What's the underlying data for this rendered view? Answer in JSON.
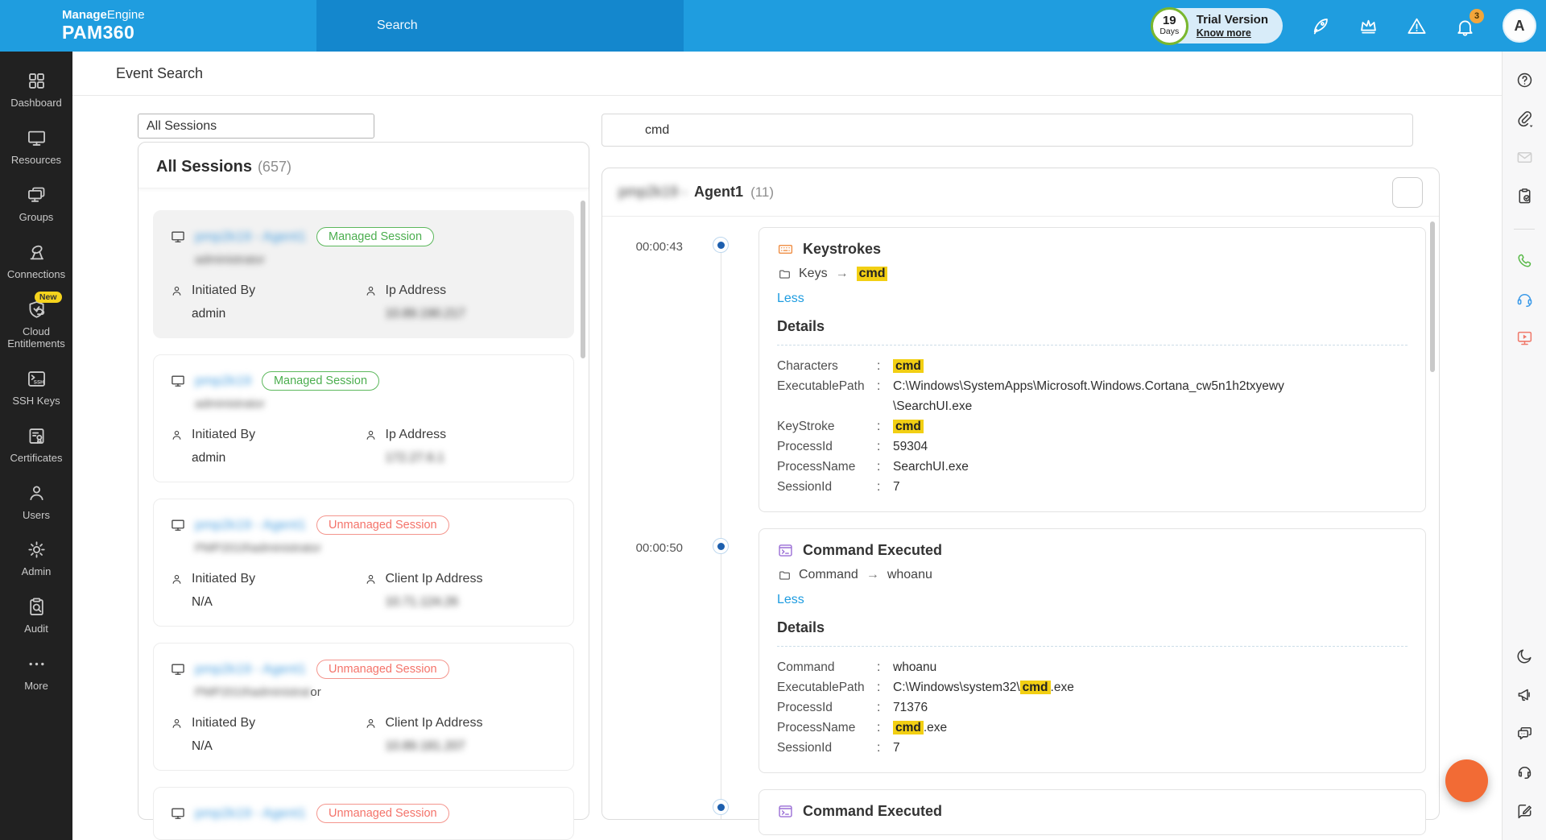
{
  "header": {
    "brand": {
      "bold": "Manage",
      "rest": "Engine",
      "product": "PAM360"
    },
    "search_placeholder": "Search",
    "trial": {
      "days": "19",
      "days_label": "Days",
      "label": "Trial Version",
      "link": "Know more"
    },
    "icons": [
      {
        "name": "rocket-icon"
      },
      {
        "name": "crown-icon"
      },
      {
        "name": "warning-icon"
      },
      {
        "name": "bell-icon",
        "badge": "3"
      }
    ],
    "avatar": "A"
  },
  "sidebar": {
    "items": [
      {
        "label": "Dashboard",
        "icon": "dashboard-icon"
      },
      {
        "label": "Resources",
        "icon": "resources-icon"
      },
      {
        "label": "Groups",
        "icon": "groups-icon"
      },
      {
        "label": "Connections",
        "icon": "connections-icon"
      },
      {
        "label": "Cloud Entitlements",
        "icon": "cloud-entitlements-icon",
        "badge": "New"
      },
      {
        "label": "SSH Keys",
        "icon": "ssh-keys-icon"
      },
      {
        "label": "Certificates",
        "icon": "certificates-icon"
      },
      {
        "label": "Users",
        "icon": "users-icon"
      },
      {
        "label": "Admin",
        "icon": "admin-icon"
      },
      {
        "label": "Audit",
        "icon": "audit-icon"
      },
      {
        "label": "More",
        "icon": "more-icon"
      }
    ]
  },
  "page": {
    "title": "Event Search"
  },
  "sessions_panel": {
    "filter_value": "All Sessions",
    "list_title": "All Sessions",
    "list_count": "(657)",
    "cards": [
      {
        "title": "pmp2k19 - Agent1",
        "title_blurred": true,
        "badge": "Managed Session",
        "badge_type": "managed",
        "subtitle": "administrator",
        "subtitle_blurred": true,
        "selected": true,
        "fields": [
          {
            "label": "Initiated By",
            "value": "admin",
            "blurred": false
          },
          {
            "label": "Ip Address",
            "value": "10.89.190.217",
            "blurred": true
          }
        ]
      },
      {
        "title": "pmp2k19",
        "title_blurred": true,
        "badge": "Managed Session",
        "badge_type": "managed",
        "subtitle": "administrator",
        "subtitle_blurred": true,
        "selected": false,
        "fields": [
          {
            "label": "Initiated By",
            "value": "admin",
            "blurred": false
          },
          {
            "label": "Ip Address",
            "value": "172.27.6.1",
            "blurred": true
          }
        ]
      },
      {
        "title": "pmp2k19 - Agent1",
        "title_blurred": true,
        "badge": "Unmanaged Session",
        "badge_type": "unmanaged",
        "subtitle": "PMP2019\\administrator",
        "subtitle_blurred": true,
        "selected": false,
        "fields": [
          {
            "label": "Initiated By",
            "value": "N/A",
            "blurred": false
          },
          {
            "label": "Client Ip Address",
            "value": "10.71.124.26",
            "blurred": true
          }
        ]
      },
      {
        "title": "pmp2k19 - Agent1",
        "title_blurred": true,
        "badge": "Unmanaged Session",
        "badge_type": "unmanaged",
        "subtitle": "PMP2019\\administrat",
        "subtitle_suffix": "or",
        "subtitle_blurred": true,
        "selected": false,
        "fields": [
          {
            "label": "Initiated By",
            "value": "N/A",
            "blurred": false
          },
          {
            "label": "Client Ip Address",
            "value": "10.89.181.207",
            "blurred": true
          }
        ]
      },
      {
        "title": "pmp2k19 - Agent1",
        "title_blurred": true,
        "badge": "Unmanaged Session",
        "badge_type": "unmanaged",
        "subtitle": "",
        "subtitle_blurred": true,
        "selected": false,
        "fields": []
      }
    ]
  },
  "results_panel": {
    "search_value": "cmd",
    "header": {
      "blurred_prefix": "pmp2k19 -",
      "name": "Agent1",
      "count": "(11)"
    },
    "events": [
      {
        "time": "00:00:43",
        "title": "Keystrokes",
        "icon": "keyboard-icon",
        "icon_color": "#ef8e44",
        "crumb_label": "Keys",
        "crumb_value": [
          {
            "t": "cmd",
            "h": true
          }
        ],
        "toggle": "Less",
        "details_label": "Details",
        "rows": [
          {
            "label": "Characters",
            "value": [
              {
                "t": "cmd",
                "h": true
              }
            ]
          },
          {
            "label": "ExecutablePath",
            "value": [
              {
                "t": "C:\\Windows\\SystemApps\\Microsoft.Windows.Cortana_cw5n1h2txyewy\\SearchUI.exe"
              }
            ]
          },
          {
            "label": "KeyStroke",
            "value": [
              {
                "t": "cmd",
                "h": true
              }
            ]
          },
          {
            "label": "ProcessId",
            "value": [
              {
                "t": "59304"
              }
            ]
          },
          {
            "label": "ProcessName",
            "value": [
              {
                "t": "SearchUI.exe"
              }
            ]
          },
          {
            "label": "SessionId",
            "value": [
              {
                "t": "7"
              }
            ]
          }
        ]
      },
      {
        "time": "00:00:50",
        "title": "Command Executed",
        "icon": "terminal-icon",
        "icon_color": "#9b6fd6",
        "crumb_label": "Command",
        "crumb_value": [
          {
            "t": "whoanu"
          }
        ],
        "toggle": "Less",
        "details_label": "Details",
        "rows": [
          {
            "label": "Command",
            "value": [
              {
                "t": "whoanu"
              }
            ]
          },
          {
            "label": "ExecutablePath",
            "value": [
              {
                "t": "C:\\Windows\\system32\\"
              },
              {
                "t": "cmd",
                "h": true
              },
              {
                "t": ".exe"
              }
            ]
          },
          {
            "label": "ProcessId",
            "value": [
              {
                "t": "71376"
              }
            ]
          },
          {
            "label": "ProcessName",
            "value": [
              {
                "t": "cmd",
                "h": true
              },
              {
                "t": ".exe"
              }
            ]
          },
          {
            "label": "SessionId",
            "value": [
              {
                "t": "7"
              }
            ]
          }
        ]
      },
      {
        "time": "",
        "title": "Command Executed",
        "icon": "terminal-icon",
        "icon_color": "#9b6fd6",
        "crumb_label": "",
        "crumb_value": [],
        "toggle": "",
        "details_label": "",
        "rows": [],
        "partial": true
      }
    ]
  },
  "rail": {
    "top": [
      {
        "name": "help-icon",
        "tone": "dark"
      },
      {
        "name": "attachment-icon",
        "tone": "dark"
      },
      {
        "name": "mail-icon",
        "tone": "muted"
      },
      {
        "name": "task-clipboard-icon",
        "tone": "dark"
      }
    ],
    "middle": [
      {
        "name": "phone-icon",
        "tone": "green"
      },
      {
        "name": "support-headset-icon",
        "tone": "blue"
      },
      {
        "name": "live-demo-icon",
        "tone": "red"
      }
    ],
    "bottom": [
      {
        "name": "dark-mode-icon",
        "tone": "dark"
      },
      {
        "name": "announcements-icon",
        "tone": "dark"
      },
      {
        "name": "feedback-chat-icon",
        "tone": "dark"
      },
      {
        "name": "headset-icon",
        "tone": "dark"
      },
      {
        "name": "write-feedback-icon",
        "tone": "dark"
      }
    ]
  },
  "colors": {
    "accent": "#1e9ce2",
    "highlight": "#f2cf13",
    "managed": "#4cae4f",
    "unmanaged": "#f4736a",
    "sidebar_bg": "#212121"
  }
}
